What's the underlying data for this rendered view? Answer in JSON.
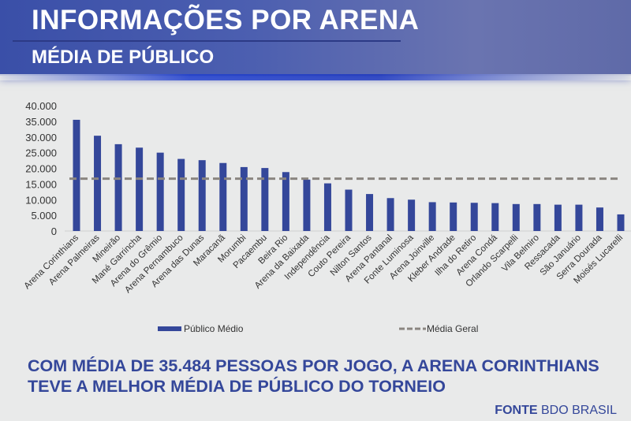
{
  "header": {
    "title": "INFORMAÇÕES POR ARENA",
    "subtitle": "MÉDIA DE PÚBLICO"
  },
  "chart_data": {
    "type": "bar",
    "title": "",
    "xlabel": "",
    "ylabel": "",
    "ylim": [
      0,
      40000
    ],
    "yticks": [
      "0",
      "5.000",
      "10.000",
      "15.000",
      "20.000",
      "25.000",
      "30.000",
      "35.000",
      "40.000"
    ],
    "grid": false,
    "legend_position": "bottom",
    "categories": [
      "Arena Corinthians",
      "Arena Palmeiras",
      "Mineirão",
      "Mané Garrincha",
      "Arena do Grêmio",
      "Arena Pernambuco",
      "Arena das Dunas",
      "Maracanã",
      "Morumbi",
      "Pacaembu",
      "Beira Rio",
      "Arena da Baixada",
      "Independência",
      "Couto Pereira",
      "Nilton Santos",
      "Arena Pantanal",
      "Fonte Luminosa",
      "Arena Joinville",
      "Kleber Andrade",
      "Ilha do Retiro",
      "Arena Condá",
      "Orlando Scarpelli",
      "Vila Belmiro",
      "Ressacada",
      "São Januário",
      "Serra Dourada",
      "Moisés Lucarelli"
    ],
    "series": [
      {
        "name": "Público Médio",
        "type": "bar",
        "color": "#34479a",
        "values": [
          35484,
          30400,
          27700,
          26600,
          25000,
          23000,
          22600,
          21700,
          20400,
          20100,
          18800,
          16400,
          15200,
          13200,
          11800,
          10500,
          10000,
          9200,
          9100,
          9000,
          8900,
          8600,
          8600,
          8400,
          8400,
          7500,
          5300
        ]
      },
      {
        "name": "Média Geral",
        "type": "line",
        "style": "dashed",
        "color": "#8a8580",
        "value": 16700
      }
    ]
  },
  "caption": {
    "line1": "COM MÉDIA DE 35.484 PESSOAS POR JOGO, A ARENA CORINTHIANS",
    "line2": "TEVE A MELHOR MÉDIA DE PÚBLICO DO TORNEIO"
  },
  "source": {
    "label": "FONTE",
    "name": "BDO BRASIL"
  }
}
